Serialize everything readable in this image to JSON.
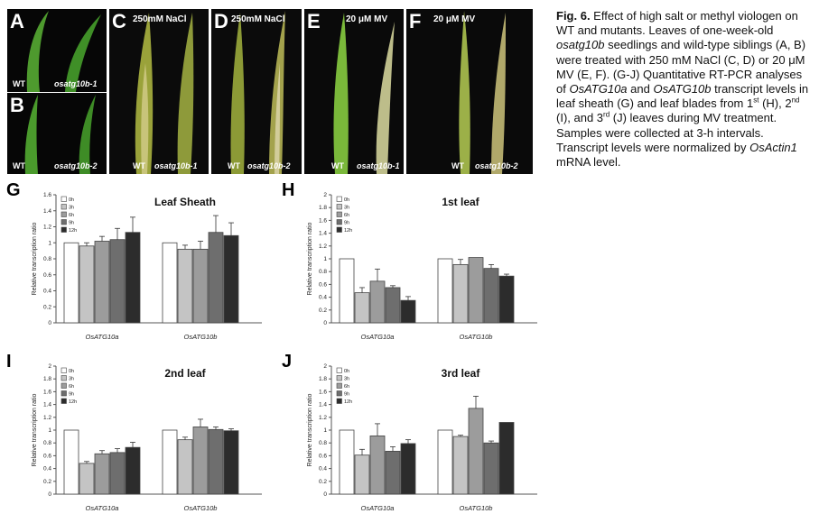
{
  "photos": [
    {
      "letter": "A",
      "treatment": "",
      "wt_label": "WT",
      "mutant_label": "osatg10b-1"
    },
    {
      "letter": "B",
      "treatment": "",
      "wt_label": "WT",
      "mutant_label": "osatg10b-2"
    },
    {
      "letter": "C",
      "treatment": "250mM NaCl",
      "wt_label": "WT",
      "mutant_label": "osatg10b-1"
    },
    {
      "letter": "D",
      "treatment": "250mM NaCl",
      "wt_label": "WT",
      "mutant_label": "osatg10b-2"
    },
    {
      "letter": "E",
      "treatment": "20 μM MV",
      "wt_label": "WT",
      "mutant_label": "osatg10b-1"
    },
    {
      "letter": "F",
      "treatment": "20 μM MV",
      "wt_label": "WT",
      "mutant_label": "osatg10b-2"
    }
  ],
  "caption": {
    "label": "Fig. 6.",
    "segments": [
      {
        "t": " Effect of high salt or methyl viologen on WT and mutants. Leaves of one-week-old "
      },
      {
        "t": "osatg10b",
        "i": true
      },
      {
        "t": " seedlings and wild-type siblings (A, B) were treated with 250 mM NaCl (C, D) or 20 μM MV (E, F). (G-J) Quantitative RT-PCR analyses of "
      },
      {
        "t": "OsATG10a",
        "i": true
      },
      {
        "t": " and "
      },
      {
        "t": "OsATG10b",
        "i": true
      },
      {
        "t": " transcript levels in leaf sheath (G) and leaf blades from 1"
      },
      {
        "t": "st",
        "sup": true
      },
      {
        "t": " (H), 2"
      },
      {
        "t": "nd",
        "sup": true
      },
      {
        "t": " (I), and 3"
      },
      {
        "t": "rd",
        "sup": true
      },
      {
        "t": " (J) leaves during MV treatment. Samples were collected at 3-h intervals. Transcript levels were normalized by "
      },
      {
        "t": "OsActin1",
        "i": true
      },
      {
        "t": " mRNA level."
      }
    ]
  },
  "colors": {
    "bars": [
      "#ffffff",
      "#c4c4c4",
      "#9c9c9c",
      "#6e6e6e",
      "#2c2c2c"
    ]
  },
  "chart_data": [
    {
      "panel": "G",
      "type": "bar",
      "title": "Leaf Sheath",
      "ylabel": "Relative transcription ratio",
      "categories": [
        "OsATG10a",
        "OsATG10b"
      ],
      "ylim": [
        0,
        1.6
      ],
      "yticks": [
        "0",
        "0.2",
        "0.4",
        "0.6",
        "0.8",
        "1",
        "1.2",
        "1.4",
        "1.6"
      ],
      "legend": [
        "0h",
        "3h",
        "6h",
        "9h",
        "12h"
      ],
      "legend_position": "top-left",
      "series": [
        {
          "name": "0h",
          "values": [
            1.0,
            1.0
          ],
          "errors": [
            0,
            0
          ]
        },
        {
          "name": "3h",
          "values": [
            0.96,
            0.92
          ],
          "errors": [
            0.04,
            0.05
          ]
        },
        {
          "name": "6h",
          "values": [
            1.02,
            0.92
          ],
          "errors": [
            0.06,
            0.1
          ]
        },
        {
          "name": "9h",
          "values": [
            1.04,
            1.13
          ],
          "errors": [
            0.14,
            0.21
          ]
        },
        {
          "name": "12h",
          "values": [
            1.13,
            1.09
          ],
          "errors": [
            0.19,
            0.16
          ]
        }
      ]
    },
    {
      "panel": "H",
      "type": "bar",
      "title": "1st leaf",
      "ylabel": "Relative transcription ratio",
      "categories": [
        "OsATG10a",
        "OsATG10b"
      ],
      "ylim": [
        0,
        2
      ],
      "yticks": [
        "0",
        "0.2",
        "0.4",
        "0.6",
        "0.8",
        "1",
        "1.2",
        "1.4",
        "1.6",
        "1.8",
        "2"
      ],
      "legend": [
        "0h",
        "3h",
        "6h",
        "9h",
        "12h"
      ],
      "legend_position": "top-left",
      "series": [
        {
          "name": "0h",
          "values": [
            1.0,
            1.0
          ],
          "errors": [
            0,
            0
          ]
        },
        {
          "name": "3h",
          "values": [
            0.47,
            0.91
          ],
          "errors": [
            0.08,
            0.08
          ]
        },
        {
          "name": "6h",
          "values": [
            0.65,
            1.02
          ],
          "errors": [
            0.19,
            0
          ]
        },
        {
          "name": "9h",
          "values": [
            0.55,
            0.85
          ],
          "errors": [
            0.03,
            0.06
          ]
        },
        {
          "name": "12h",
          "values": [
            0.35,
            0.73
          ],
          "errors": [
            0.06,
            0.03
          ]
        }
      ]
    },
    {
      "panel": "I",
      "type": "bar",
      "title": "2nd leaf",
      "ylabel": "Relative transcription ratio",
      "categories": [
        "OsATG10a",
        "OsATG10b"
      ],
      "ylim": [
        0,
        2
      ],
      "yticks": [
        "0",
        "0.2",
        "0.4",
        "0.6",
        "0.8",
        "1",
        "1.2",
        "1.4",
        "1.6",
        "1.8",
        "2"
      ],
      "legend": [
        "0h",
        "3h",
        "6h",
        "9h",
        "12h"
      ],
      "legend_position": "top-left",
      "series": [
        {
          "name": "0h",
          "values": [
            1.0,
            1.0
          ],
          "errors": [
            0,
            0
          ]
        },
        {
          "name": "3h",
          "values": [
            0.48,
            0.85
          ],
          "errors": [
            0.03,
            0.04
          ]
        },
        {
          "name": "6h",
          "values": [
            0.63,
            1.05
          ],
          "errors": [
            0.05,
            0.12
          ]
        },
        {
          "name": "9h",
          "values": [
            0.65,
            1.01
          ],
          "errors": [
            0.06,
            0.04
          ]
        },
        {
          "name": "12h",
          "values": [
            0.73,
            0.99
          ],
          "errors": [
            0.08,
            0.03
          ]
        }
      ]
    },
    {
      "panel": "J",
      "type": "bar",
      "title": "3rd leaf",
      "ylabel": "Relative transcription ratio",
      "categories": [
        "OsATG10a",
        "OsATG10b"
      ],
      "ylim": [
        0,
        2
      ],
      "yticks": [
        "0",
        "0.2",
        "0.4",
        "0.6",
        "0.8",
        "1",
        "1.2",
        "1.4",
        "1.6",
        "1.8",
        "2"
      ],
      "legend": [
        "0h",
        "3h",
        "6h",
        "9h",
        "12h"
      ],
      "legend_position": "top-left",
      "series": [
        {
          "name": "0h",
          "values": [
            1.0,
            1.0
          ],
          "errors": [
            0,
            0
          ]
        },
        {
          "name": "3h",
          "values": [
            0.61,
            0.9
          ],
          "errors": [
            0.09,
            0.02
          ]
        },
        {
          "name": "6h",
          "values": [
            0.91,
            1.34
          ],
          "errors": [
            0.19,
            0.19
          ]
        },
        {
          "name": "9h",
          "values": [
            0.67,
            0.8
          ],
          "errors": [
            0.07,
            0.03
          ]
        },
        {
          "name": "12h",
          "values": [
            0.79,
            1.12
          ],
          "errors": [
            0.06,
            0
          ]
        }
      ]
    }
  ]
}
